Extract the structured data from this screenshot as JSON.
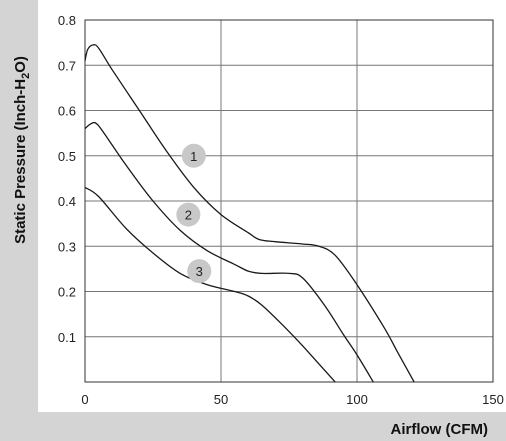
{
  "chart_data": {
    "type": "line",
    "xlabel": "Airflow (CFM)",
    "ylabel_main": "Static Pressure (Inch-H",
    "ylabel_sub": "2",
    "ylabel_end": "O)",
    "xlim": [
      0,
      150
    ],
    "ylim": [
      0,
      0.8
    ],
    "x_ticks": [
      0,
      50,
      100,
      150
    ],
    "y_ticks": [
      0.1,
      0.2,
      0.3,
      0.4,
      0.5,
      0.6,
      0.7,
      0.8
    ],
    "x_tick_labels": [
      "0",
      "50",
      "100",
      "150"
    ],
    "y_tick_labels": [
      "0.1",
      "0.2",
      "0.3",
      "0.4",
      "0.5",
      "0.6",
      "0.7",
      "0.8"
    ],
    "grid": true,
    "series": [
      {
        "label": "1",
        "label_at": [
          40,
          0.5
        ],
        "points": [
          [
            0,
            0.71
          ],
          [
            1,
            0.735
          ],
          [
            3,
            0.745
          ],
          [
            5,
            0.738
          ],
          [
            10,
            0.69
          ],
          [
            20,
            0.6
          ],
          [
            30,
            0.51
          ],
          [
            40,
            0.43
          ],
          [
            50,
            0.37
          ],
          [
            60,
            0.33
          ],
          [
            64,
            0.315
          ],
          [
            70,
            0.31
          ],
          [
            80,
            0.305
          ],
          [
            86,
            0.3
          ],
          [
            92,
            0.28
          ],
          [
            100,
            0.215
          ],
          [
            110,
            0.12
          ],
          [
            115,
            0.065
          ],
          [
            121,
            0.0
          ]
        ]
      },
      {
        "label": "2",
        "label_at": [
          38,
          0.37
        ],
        "points": [
          [
            0,
            0.56
          ],
          [
            2,
            0.57
          ],
          [
            4,
            0.572
          ],
          [
            7,
            0.55
          ],
          [
            15,
            0.48
          ],
          [
            25,
            0.4
          ],
          [
            35,
            0.335
          ],
          [
            45,
            0.29
          ],
          [
            55,
            0.26
          ],
          [
            60,
            0.245
          ],
          [
            65,
            0.24
          ],
          [
            75,
            0.24
          ],
          [
            80,
            0.23
          ],
          [
            88,
            0.17
          ],
          [
            95,
            0.105
          ],
          [
            100,
            0.06
          ],
          [
            106,
            0.0
          ]
        ]
      },
      {
        "label": "3",
        "label_at": [
          42,
          0.245
        ],
        "points": [
          [
            0,
            0.43
          ],
          [
            5,
            0.41
          ],
          [
            15,
            0.34
          ],
          [
            25,
            0.285
          ],
          [
            35,
            0.24
          ],
          [
            45,
            0.215
          ],
          [
            55,
            0.2
          ],
          [
            60,
            0.19
          ],
          [
            65,
            0.17
          ],
          [
            72,
            0.13
          ],
          [
            80,
            0.08
          ],
          [
            86,
            0.04
          ],
          [
            92,
            0.0
          ]
        ]
      }
    ]
  },
  "colors": {
    "grid": "#777777",
    "frame": "#333333",
    "line": "#1a1a1a",
    "badge": "#c8c8c8",
    "band": "#d4d4d4"
  }
}
